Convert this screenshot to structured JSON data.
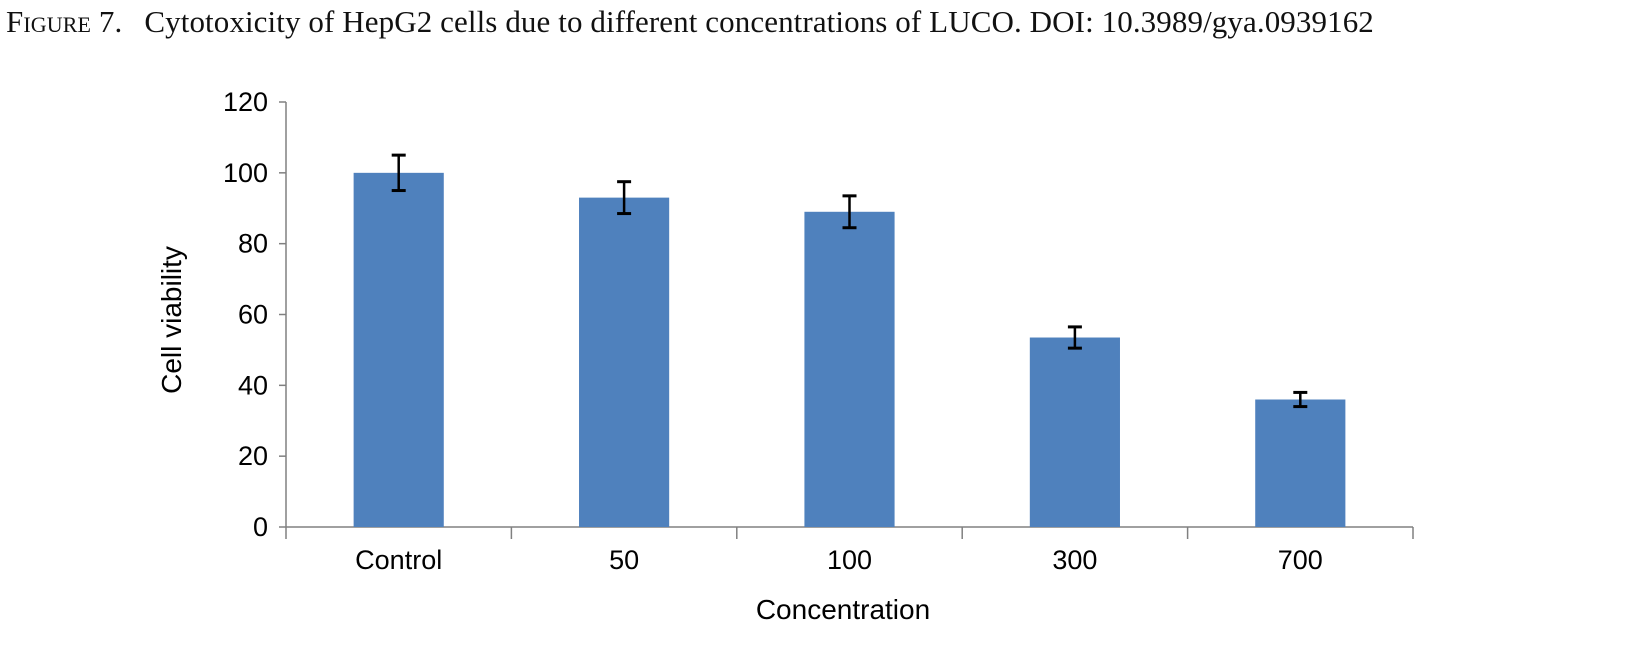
{
  "figure": {
    "label": "Figure 7.",
    "caption": "Cytotoxicity of HepG2 cells due to different concentrations of LUCO. DOI: 10.3989/gya.0939162"
  },
  "chart_data": {
    "type": "bar",
    "categories": [
      "Control",
      "50",
      "100",
      "300",
      "700"
    ],
    "values": [
      100,
      93,
      89,
      53.5,
      36
    ],
    "error": [
      5,
      4.5,
      4.5,
      3,
      2
    ],
    "xlabel": "Concentration",
    "ylabel": "Cell viability",
    "ylim": [
      0,
      120
    ],
    "yticks": [
      0,
      20,
      40,
      60,
      80,
      100,
      120
    ],
    "grid": false,
    "legend": "none",
    "colors": {
      "bar": "#4f81bd",
      "axis": "#808080",
      "error_bar": "#000000"
    }
  }
}
